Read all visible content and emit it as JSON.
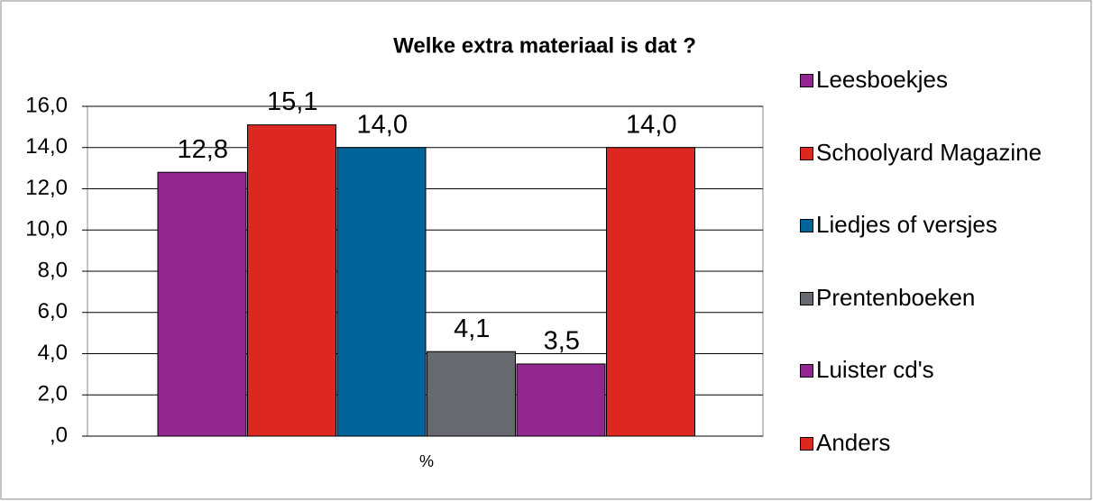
{
  "chart_data": {
    "type": "bar",
    "title": "Welke extra materiaal is dat ?",
    "categories": [
      "%"
    ],
    "series": [
      {
        "name": "Leesboekjes",
        "color": "#92278f",
        "values": [
          12.8
        ],
        "value_labels": [
          "12,8"
        ]
      },
      {
        "name": "Schoolyard Magazine",
        "color": "#dc2820",
        "values": [
          15.1
        ],
        "value_labels": [
          "15,1"
        ]
      },
      {
        "name": "Liedjes of versjes",
        "color": "#00639a",
        "values": [
          14.0
        ],
        "value_labels": [
          "14,0"
        ]
      },
      {
        "name": "Prentenboeken",
        "color": "#666a70",
        "values": [
          4.1
        ],
        "value_labels": [
          "4,1"
        ]
      },
      {
        "name": "Luister cd's",
        "color": "#92278f",
        "values": [
          3.5
        ],
        "value_labels": [
          "3,5"
        ]
      },
      {
        "name": "Anders",
        "color": "#dc2820",
        "values": [
          14.0
        ],
        "value_labels": [
          "14,0"
        ]
      }
    ],
    "ylim": [
      0,
      16
    ],
    "yticks": [
      {
        "value": 0,
        "label": ",0"
      },
      {
        "value": 2,
        "label": "2,0"
      },
      {
        "value": 4,
        "label": "4,0"
      },
      {
        "value": 6,
        "label": "6,0"
      },
      {
        "value": 8,
        "label": "8,0"
      },
      {
        "value": 10,
        "label": "10,0"
      },
      {
        "value": 12,
        "label": "12,0"
      },
      {
        "value": 14,
        "label": "14,0"
      },
      {
        "value": 16,
        "label": "16,0"
      }
    ],
    "grid": true,
    "legend": "right"
  }
}
